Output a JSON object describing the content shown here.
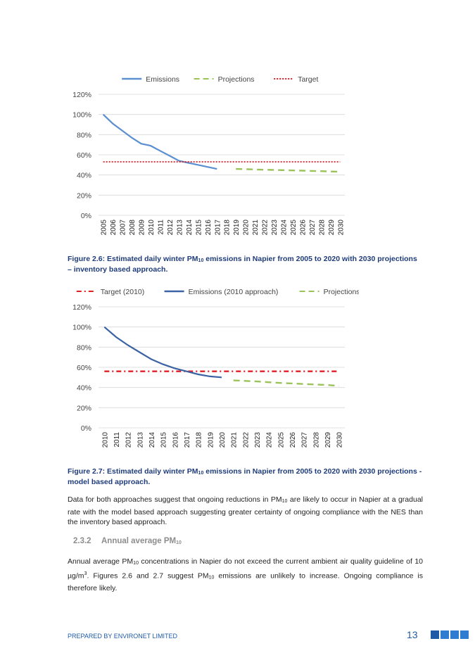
{
  "chart_data": [
    {
      "type": "line",
      "legend_position": "top",
      "grid": true,
      "ylim": [
        0,
        120
      ],
      "y_ticks": [
        "0%",
        "20%",
        "40%",
        "60%",
        "80%",
        "100%",
        "120%"
      ],
      "x": [
        "2005",
        "2006",
        "2007",
        "2008",
        "2009",
        "2010",
        "2011",
        "2012",
        "2013",
        "2014",
        "2015",
        "2016",
        "2017",
        "2018",
        "2019",
        "2020",
        "2021",
        "2022",
        "2023",
        "2024",
        "2025",
        "2026",
        "2027",
        "2028",
        "2029",
        "2030"
      ],
      "series": [
        {
          "name": "Emissions",
          "style": "solid",
          "color": "#5b8fd0",
          "values": [
            100,
            91,
            84,
            77,
            71,
            69,
            64,
            59,
            54,
            52,
            50,
            48,
            46,
            null,
            null,
            null,
            null,
            null,
            null,
            null,
            null,
            null,
            null,
            null,
            null,
            null
          ]
        },
        {
          "name": "Projections",
          "style": "dashed",
          "color": "#9ac35a",
          "values": [
            null,
            null,
            null,
            null,
            null,
            null,
            null,
            null,
            null,
            null,
            null,
            null,
            null,
            null,
            46,
            45.8,
            45.5,
            45.2,
            45,
            44.8,
            44.5,
            44.3,
            44,
            43.8,
            43.5,
            43.2
          ]
        },
        {
          "name": "Target",
          "style": "dotted",
          "color": "#e01f25",
          "values": [
            53,
            53,
            53,
            53,
            53,
            53,
            53,
            53,
            53,
            53,
            53,
            53,
            53,
            53,
            53,
            53,
            53,
            53,
            53,
            53,
            53,
            53,
            53,
            53,
            53,
            53
          ]
        }
      ]
    },
    {
      "type": "line",
      "legend_position": "top",
      "grid": true,
      "ylim": [
        0,
        120
      ],
      "y_ticks": [
        "0%",
        "20%",
        "40%",
        "60%",
        "80%",
        "100%",
        "120%"
      ],
      "x": [
        "2010",
        "2011",
        "2012",
        "2013",
        "2014",
        "2015",
        "2016",
        "2017",
        "2018",
        "2019",
        "2020",
        "2021",
        "2022",
        "2023",
        "2024",
        "2025",
        "2026",
        "2027",
        "2028",
        "2029",
        "2030"
      ],
      "series": [
        {
          "name": "Target (2010)",
          "style": "dashdot",
          "color": "#e01f25",
          "values": [
            56,
            56,
            56,
            56,
            56,
            56,
            56,
            56,
            56,
            56,
            56,
            56,
            56,
            56,
            56,
            56,
            56,
            56,
            56,
            56,
            56
          ]
        },
        {
          "name": "Emissions (2010 approach)",
          "style": "solid",
          "color": "#3b63a4",
          "values": [
            100,
            90,
            82,
            75,
            68,
            63,
            59,
            56,
            53,
            51,
            50,
            null,
            null,
            null,
            null,
            null,
            null,
            null,
            null,
            null,
            null
          ]
        },
        {
          "name": "Projections",
          "style": "dashed",
          "color": "#9ac35a",
          "values": [
            null,
            null,
            null,
            null,
            null,
            null,
            null,
            null,
            null,
            null,
            null,
            47,
            46.5,
            46,
            45.2,
            44.5,
            44,
            43.5,
            43,
            42.5,
            41.5
          ]
        }
      ]
    }
  ],
  "captions": {
    "fig26_pre": "Figure 2.6: Estimated daily winter PM",
    "fig26_sub": "10",
    "fig26_post": " emissions in Napier from 2005 to 2020 with 2030 projections – inventory based approach.",
    "fig27_pre": "Figure 2.7: Estimated daily winter PM",
    "fig27_sub": "10",
    "fig27_post": " emissions in Napier from 2005 to 2020 with 2030 projections - model based approach."
  },
  "paragraph1": {
    "a": "Data for both approaches suggest that ongoing reductions in PM",
    "sub": "10",
    "b": " are likely to occur in Napier at a gradual rate with the model based approach suggesting greater certainty of ongoing compliance with the NES than the inventory based approach."
  },
  "section": {
    "number": "2.3.2",
    "title_pre": "Annual average PM",
    "title_sub": "10"
  },
  "paragraph2": {
    "a": "Annual average PM",
    "sub1": "10",
    "b": " concentrations in Napier do not exceed the current ambient air quality guideline of 10 µg/m",
    "sup": "3",
    "c": ".  Figures 2.6 and 2.7 suggest PM",
    "sub2": "10",
    "d": " emissions are unlikely to increase.  Ongoing compliance is therefore likely."
  },
  "footer": {
    "prepared_by": "PREPARED BY ENVIRONET LIMITED",
    "page_number": "13",
    "square_colors": [
      "#1f5aa6",
      "#2f7cd0",
      "#2f7cd0",
      "#2f7cd0"
    ]
  }
}
